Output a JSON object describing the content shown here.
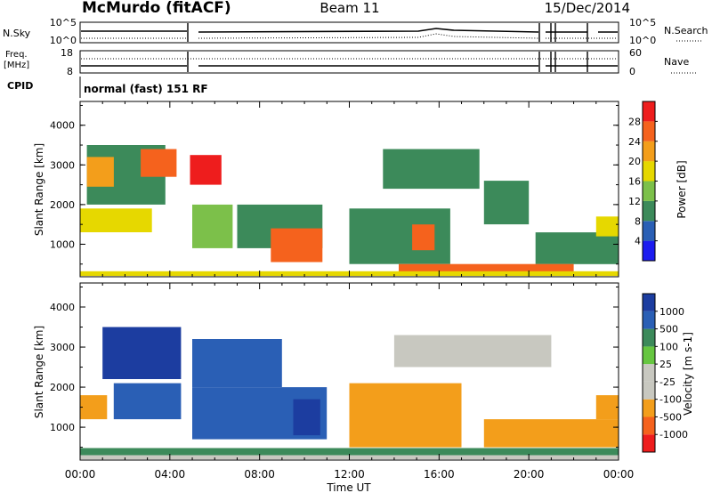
{
  "header": {
    "station": "McMurdo (fitACF)",
    "beam": "Beam 11",
    "date": "15/Dec/2014",
    "cpid_label": "CPID",
    "cpid_value": "normal (fast) 151 RF"
  },
  "status_panels": {
    "nsky_label": "N.Sky",
    "nsky_top": "10^5",
    "nsky_bottom": "10^0",
    "nsearch_label": "N.Search",
    "nsearch_top": "10^5",
    "nsearch_bottom": "10^0",
    "freq_label_1": "Freq.",
    "freq_label_2": "[MHz]",
    "freq_top": "18",
    "freq_bottom": "8",
    "nave_label": "Nave",
    "nave_top": "60",
    "nave_bottom": "0"
  },
  "colors": {
    "power": [
      "#1c1cf0",
      "#2a5fb5",
      "#3c8a5a",
      "#7cc04a",
      "#e6d800",
      "#f39e1b",
      "#f5621d",
      "#ee1d1d"
    ],
    "velocity": [
      "#ee1d1d",
      "#f5621d",
      "#f39e1b",
      "#c8c8c0",
      "#c8c8c0",
      "#66c640",
      "#3c8a5a",
      "#2a5fb5",
      "#1c3da0"
    ]
  },
  "chart_data": [
    {
      "type": "heatmap",
      "name": "power",
      "ylabel": "Slant Range [km]",
      "colorbar_label": "Power [dB]",
      "colorbar_ticks": [
        "4",
        "8",
        "12",
        "16",
        "20",
        "24",
        "28"
      ],
      "colorbar_range": [
        0,
        32
      ],
      "x_ticks": [
        "00:00",
        "04:00",
        "08:00",
        "12:00",
        "16:00",
        "20:00",
        "00:00"
      ],
      "x_range_hours": [
        0,
        24
      ],
      "y_ticks": [
        "1000",
        "2000",
        "3000",
        "4000"
      ],
      "y_range_km": [
        180,
        4600
      ],
      "regions": [
        {
          "t": [
            0.3,
            3.8
          ],
          "r": [
            2000,
            3500
          ],
          "value": 10
        },
        {
          "t": [
            2.7,
            4.3
          ],
          "r": [
            2700,
            3400
          ],
          "value": 27
        },
        {
          "t": [
            0.3,
            1.5
          ],
          "r": [
            2450,
            3200
          ],
          "value": 22
        },
        {
          "t": [
            4.9,
            6.3
          ],
          "r": [
            2500,
            3250
          ],
          "value": 28
        },
        {
          "t": [
            0.0,
            3.2
          ],
          "r": [
            1300,
            1900
          ],
          "value": 16
        },
        {
          "t": [
            5.0,
            6.8
          ],
          "r": [
            900,
            2000
          ],
          "value": 13
        },
        {
          "t": [
            7.0,
            10.8
          ],
          "r": [
            900,
            2000
          ],
          "value": 11
        },
        {
          "t": [
            8.5,
            10.8
          ],
          "r": [
            550,
            1400
          ],
          "value": 25
        },
        {
          "t": [
            12.0,
            16.5
          ],
          "r": [
            500,
            1900
          ],
          "value": 10
        },
        {
          "t": [
            14.8,
            15.8
          ],
          "r": [
            850,
            1500
          ],
          "value": 27
        },
        {
          "t": [
            13.5,
            17.8
          ],
          "r": [
            2400,
            3400
          ],
          "value": 9
        },
        {
          "t": [
            18.0,
            20.0
          ],
          "r": [
            1500,
            2600
          ],
          "value": 8
        },
        {
          "t": [
            20.3,
            24.0
          ],
          "r": [
            500,
            1300
          ],
          "value": 9
        },
        {
          "t": [
            23.0,
            24.0
          ],
          "r": [
            1200,
            1700
          ],
          "value": 17
        },
        {
          "t": [
            14.2,
            22.0
          ],
          "r": [
            250,
            500
          ],
          "value": 24
        },
        {
          "t": [
            0.0,
            24.0
          ],
          "r": [
            200,
            320
          ],
          "value": 18
        }
      ]
    },
    {
      "type": "heatmap",
      "name": "velocity",
      "ylabel": "Slant Range [km]",
      "colorbar_label": "Velocity [m s-1]",
      "colorbar_ticks": [
        "1000",
        "500",
        "100",
        "25",
        "-25",
        "-100",
        "-500",
        "-1000"
      ],
      "x_ticks": [
        "00:00",
        "04:00",
        "08:00",
        "12:00",
        "16:00",
        "20:00",
        "00:00"
      ],
      "x_range_hours": [
        0,
        24
      ],
      "xlabel": "Time UT",
      "y_ticks": [
        "1000",
        "2000",
        "3000",
        "4000"
      ],
      "y_range_km": [
        180,
        4600
      ],
      "regions": [
        {
          "t": [
            1.0,
            4.5
          ],
          "r": [
            2200,
            3500
          ],
          "value": 700
        },
        {
          "t": [
            5.0,
            9.0
          ],
          "r": [
            2000,
            3200
          ],
          "value": 400
        },
        {
          "t": [
            0.0,
            1.2
          ],
          "r": [
            1200,
            1800
          ],
          "value": -300
        },
        {
          "t": [
            1.5,
            4.5
          ],
          "r": [
            1200,
            2100
          ],
          "value": 300
        },
        {
          "t": [
            5.0,
            11.0
          ],
          "r": [
            700,
            2000
          ],
          "value": 300
        },
        {
          "t": [
            9.5,
            10.7
          ],
          "r": [
            800,
            1700
          ],
          "value": 800
        },
        {
          "t": [
            12.0,
            17.0
          ],
          "r": [
            500,
            2100
          ],
          "value": -300
        },
        {
          "t": [
            14.0,
            21.0
          ],
          "r": [
            2500,
            3300
          ],
          "value": 0
        },
        {
          "t": [
            18.0,
            24.0
          ],
          "r": [
            500,
            1200
          ],
          "value": -200
        },
        {
          "t": [
            23.0,
            24.0
          ],
          "r": [
            1200,
            1800
          ],
          "value": -300
        },
        {
          "t": [
            0.0,
            24.0
          ],
          "r": [
            300,
            480
          ],
          "value": 50
        },
        {
          "t": [
            0.0,
            24.0
          ],
          "r": [
            200,
            300
          ],
          "value": 0
        }
      ]
    }
  ]
}
